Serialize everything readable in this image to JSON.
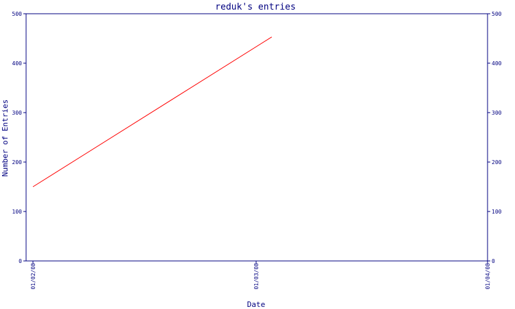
{
  "chart_data": {
    "type": "line",
    "title": "reduk's entries",
    "xlabel": "Date",
    "ylabel": "Number of Entries",
    "x_tick_labels": [
      "01/02/08",
      "01/03/08",
      "01/04/08"
    ],
    "x": [
      "01/02/08",
      "01/03/08"
    ],
    "series": [
      {
        "values": [
          150,
          453
        ]
      }
    ],
    "ylim": [
      0,
      500
    ],
    "y_ticks": [
      0,
      100,
      200,
      300,
      400,
      500
    ],
    "y_tick_labels": [
      "0",
      "100",
      "200",
      "300",
      "400",
      "500"
    ],
    "grid": false,
    "right_axis": true,
    "colors": {
      "axis": "#000080",
      "series": "#ff0000",
      "title": "#000080",
      "text": "#000080"
    }
  }
}
